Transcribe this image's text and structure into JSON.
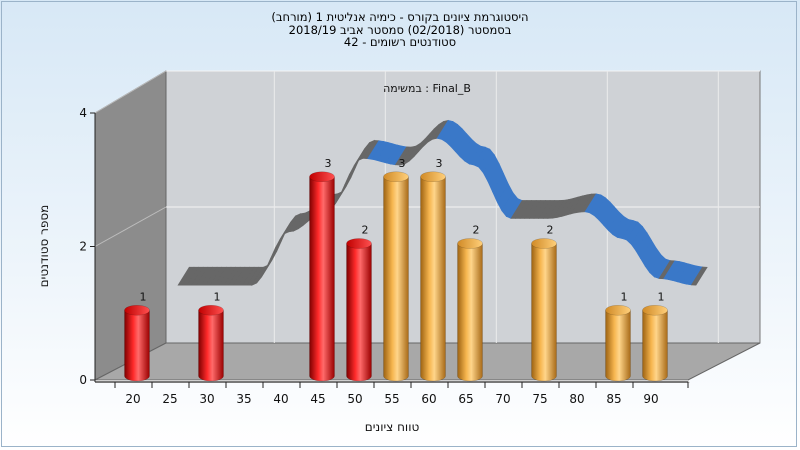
{
  "chart_data": {
    "type": "bar",
    "title_lines": [
      "היסטוגרמת ציונים בקורס - כימיה אנליטית 1 (מורחב)",
      "בסמסטר  (02/2018)  סמסטר אביב 2018/19",
      "סטודנטים רשומים - 42"
    ],
    "assignment_label": "במשימה : Final_B",
    "xlabel": "טווח ציונים",
    "ylabel": "מספר סטודנטים",
    "x_ticks": [
      "20",
      "25",
      "30",
      "35",
      "40",
      "45",
      "50",
      "55",
      "60",
      "65",
      "70",
      "75",
      "80",
      "85",
      "90"
    ],
    "y_ticks": [
      "0",
      "2",
      "4"
    ],
    "ylim": [
      0,
      4
    ],
    "bars": [
      {
        "bin": 20,
        "value": 1,
        "color": "red"
      },
      {
        "bin": 30,
        "value": 1,
        "color": "red"
      },
      {
        "bin": 45,
        "value": 3,
        "color": "red"
      },
      {
        "bin": 50,
        "value": 2,
        "color": "red"
      },
      {
        "bin": 55,
        "value": 3,
        "color": "orange"
      },
      {
        "bin": 60,
        "value": 3,
        "color": "orange"
      },
      {
        "bin": 65,
        "value": 2,
        "color": "orange"
      },
      {
        "bin": 75,
        "value": 2,
        "color": "orange"
      },
      {
        "bin": 85,
        "value": 1,
        "color": "orange"
      },
      {
        "bin": 90,
        "value": 1,
        "color": "orange"
      }
    ],
    "trend_ribbon": {
      "points": [
        {
          "x": 20,
          "y": 1.3
        },
        {
          "x": 25,
          "y": 1.3
        },
        {
          "x": 30,
          "y": 1.3
        },
        {
          "x": 35,
          "y": 2.1
        },
        {
          "x": 40,
          "y": 2.4
        },
        {
          "x": 45,
          "y": 3.2
        },
        {
          "x": 50,
          "y": 3.1
        },
        {
          "x": 55,
          "y": 3.5
        },
        {
          "x": 60,
          "y": 3.1
        },
        {
          "x": 65,
          "y": 2.3
        },
        {
          "x": 70,
          "y": 2.3
        },
        {
          "x": 75,
          "y": 2.4
        },
        {
          "x": 80,
          "y": 2.0
        },
        {
          "x": 85,
          "y": 1.4
        },
        {
          "x": 90,
          "y": 1.3
        }
      ],
      "colors": {
        "top": "#3a78c8",
        "side": "#676767"
      }
    },
    "colors": {
      "red": "#e01a1a",
      "orange": "#eba43c",
      "back_wall": "#cfd2d6",
      "left_wall": "#8c8c8c",
      "floor": "#a8a8a8"
    },
    "grid": true
  }
}
